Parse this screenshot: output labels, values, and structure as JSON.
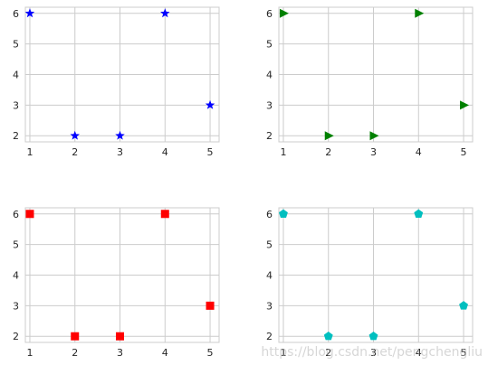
{
  "figure": {
    "watermark": "https://blog.csdn.net/pengchengliu"
  },
  "chart_data": [
    {
      "type": "scatter",
      "marker": "star",
      "color": "#0000ff",
      "x": [
        1,
        2,
        3,
        4,
        5
      ],
      "y": [
        6,
        2,
        2,
        6,
        3
      ],
      "xlim": [
        0.9,
        5.2
      ],
      "ylim": [
        1.8,
        6.2
      ],
      "xticks": [
        1,
        2,
        3,
        4,
        5
      ],
      "yticks": [
        2,
        3,
        4,
        5,
        6
      ],
      "grid": true
    },
    {
      "type": "scatter",
      "marker": "triangle-right",
      "color": "#008000",
      "x": [
        1,
        2,
        3,
        4,
        5
      ],
      "y": [
        6,
        2,
        2,
        6,
        3
      ],
      "xlim": [
        0.9,
        5.2
      ],
      "ylim": [
        1.8,
        6.2
      ],
      "xticks": [
        1,
        2,
        3,
        4,
        5
      ],
      "yticks": [
        2,
        3,
        4,
        5,
        6
      ],
      "grid": true
    },
    {
      "type": "scatter",
      "marker": "square",
      "color": "#ff0000",
      "x": [
        1,
        2,
        3,
        4,
        5
      ],
      "y": [
        6,
        2,
        2,
        6,
        3
      ],
      "xlim": [
        0.9,
        5.2
      ],
      "ylim": [
        1.8,
        6.2
      ],
      "xticks": [
        1,
        2,
        3,
        4,
        5
      ],
      "yticks": [
        2,
        3,
        4,
        5,
        6
      ],
      "grid": true
    },
    {
      "type": "scatter",
      "marker": "pentagon",
      "color": "#00bfbf",
      "x": [
        1,
        2,
        3,
        4,
        5
      ],
      "y": [
        6,
        2,
        2,
        6,
        3
      ],
      "xlim": [
        0.9,
        5.2
      ],
      "ylim": [
        1.8,
        6.2
      ],
      "xticks": [
        1,
        2,
        3,
        4,
        5
      ],
      "yticks": [
        2,
        3,
        4,
        5,
        6
      ],
      "grid": true
    }
  ]
}
